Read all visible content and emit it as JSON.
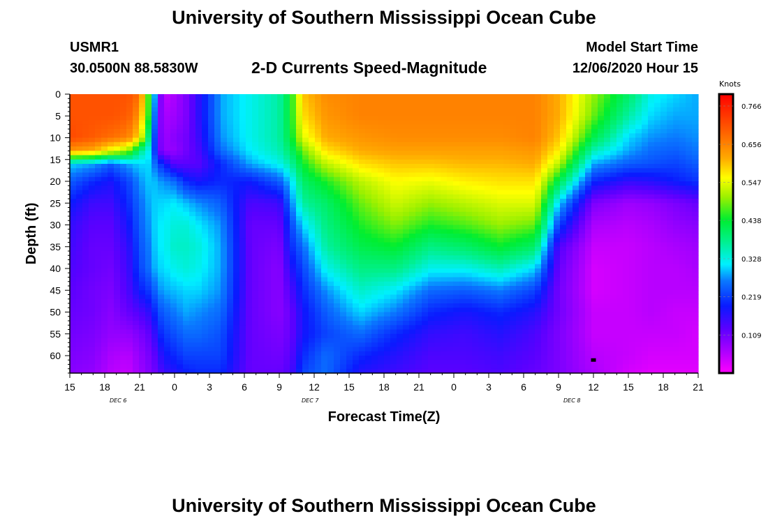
{
  "title_top": "University of Southern Mississippi Ocean Cube",
  "title_bottom": "University of Southern Mississippi Ocean Cube",
  "header": {
    "station": "USMR1",
    "coords": "30.0500N 88.5830W",
    "subtitle": "2-D Currents Speed-Magnitude",
    "model_start_label": "Model Start Time",
    "model_start_value": "12/06/2020 Hour 15"
  },
  "chart_data": {
    "type": "heatmap",
    "title": "2-D Currents Speed-Magnitude",
    "xlabel": "Forecast Time(Z)",
    "ylabel": "Depth (ft)",
    "x_tick_labels": [
      "15",
      "18",
      "21",
      "0",
      "3",
      "6",
      "9",
      "12",
      "15",
      "18",
      "21",
      "0",
      "3",
      "6",
      "9",
      "12",
      "15",
      "18",
      "21"
    ],
    "y_tick_labels": [
      "0",
      "5",
      "10",
      "15",
      "20",
      "25",
      "30",
      "35",
      "40",
      "45",
      "50",
      "55",
      "60"
    ],
    "x_range_hours": [
      0,
      54
    ],
    "y_range_ft": [
      0,
      64
    ],
    "date_labels": [
      {
        "text": "DEC  6",
        "hour": 4.5
      },
      {
        "text": "DEC  7",
        "hour": 21
      },
      {
        "text": "DEC  8",
        "hour": 43.5
      }
    ],
    "colorbar": {
      "unit": "Knots",
      "ticks": [
        "0.766",
        "0.656",
        "0.547",
        "0.438",
        "0.328",
        "0.219",
        "0.109"
      ],
      "tick_values": [
        0.766,
        0.656,
        0.547,
        0.438,
        0.328,
        0.219,
        0.109
      ],
      "range": [
        0.0,
        0.8
      ]
    },
    "marker": {
      "hour": 45,
      "depth_ft": 61
    },
    "grid_hours": [
      0,
      2,
      3.5,
      5,
      6,
      7,
      7.5,
      8,
      9,
      10,
      11,
      13,
      15.5,
      18,
      19,
      20,
      22,
      25,
      28,
      31,
      34,
      37,
      40,
      42,
      45,
      48,
      50,
      52,
      54
    ],
    "grid_depths": [
      0,
      5,
      10,
      13,
      16,
      20,
      25,
      30,
      35,
      40,
      45,
      50,
      55,
      60,
      64
    ],
    "profiles": [
      [
        0.71,
        0.71,
        0.72,
        0.64,
        0.3,
        0.24,
        0.19,
        0.16,
        0.15,
        0.14,
        0.13,
        0.12,
        0.11,
        0.1,
        0.09
      ],
      [
        0.71,
        0.71,
        0.7,
        0.62,
        0.28,
        0.2,
        0.15,
        0.13,
        0.12,
        0.12,
        0.11,
        0.11,
        0.1,
        0.09,
        0.08
      ],
      [
        0.71,
        0.71,
        0.68,
        0.55,
        0.24,
        0.18,
        0.15,
        0.13,
        0.12,
        0.11,
        0.1,
        0.09,
        0.08,
        0.06,
        0.05
      ],
      [
        0.71,
        0.7,
        0.66,
        0.5,
        0.28,
        0.22,
        0.2,
        0.18,
        0.16,
        0.15,
        0.14,
        0.12,
        0.08,
        0.05,
        0.04
      ],
      [
        0.68,
        0.64,
        0.58,
        0.38,
        0.3,
        0.27,
        0.25,
        0.24,
        0.23,
        0.22,
        0.19,
        0.14,
        0.1,
        0.08,
        0.07
      ],
      [
        0.4,
        0.4,
        0.32,
        0.3,
        0.3,
        0.3,
        0.29,
        0.28,
        0.27,
        0.26,
        0.22,
        0.17,
        0.13,
        0.11,
        0.1
      ],
      [
        0.2,
        0.15,
        0.15,
        0.15,
        0.22,
        0.28,
        0.3,
        0.31,
        0.31,
        0.3,
        0.26,
        0.22,
        0.18,
        0.14,
        0.12
      ],
      [
        0.04,
        0.06,
        0.07,
        0.08,
        0.2,
        0.27,
        0.3,
        0.31,
        0.31,
        0.3,
        0.28,
        0.24,
        0.21,
        0.18,
        0.15
      ],
      [
        0.06,
        0.07,
        0.09,
        0.08,
        0.13,
        0.25,
        0.31,
        0.33,
        0.34,
        0.32,
        0.29,
        0.26,
        0.23,
        0.2,
        0.17
      ],
      [
        0.1,
        0.1,
        0.11,
        0.11,
        0.13,
        0.2,
        0.29,
        0.33,
        0.34,
        0.33,
        0.3,
        0.28,
        0.25,
        0.22,
        0.19
      ],
      [
        0.16,
        0.16,
        0.15,
        0.14,
        0.13,
        0.18,
        0.27,
        0.31,
        0.33,
        0.32,
        0.3,
        0.27,
        0.25,
        0.22,
        0.2
      ],
      [
        0.28,
        0.28,
        0.27,
        0.25,
        0.2,
        0.2,
        0.24,
        0.27,
        0.28,
        0.28,
        0.27,
        0.25,
        0.23,
        0.22,
        0.2
      ],
      [
        0.32,
        0.32,
        0.32,
        0.31,
        0.28,
        0.19,
        0.14,
        0.12,
        0.12,
        0.12,
        0.12,
        0.12,
        0.12,
        0.12,
        0.12
      ],
      [
        0.36,
        0.36,
        0.36,
        0.35,
        0.32,
        0.24,
        0.15,
        0.12,
        0.1,
        0.09,
        0.09,
        0.09,
        0.1,
        0.11,
        0.12
      ],
      [
        0.44,
        0.44,
        0.43,
        0.4,
        0.36,
        0.3,
        0.26,
        0.22,
        0.2,
        0.17,
        0.14,
        0.12,
        0.12,
        0.13,
        0.14
      ],
      [
        0.6,
        0.58,
        0.54,
        0.48,
        0.44,
        0.4,
        0.36,
        0.3,
        0.25,
        0.22,
        0.2,
        0.18,
        0.18,
        0.2,
        0.22
      ],
      [
        0.65,
        0.64,
        0.62,
        0.58,
        0.52,
        0.45,
        0.4,
        0.38,
        0.36,
        0.32,
        0.27,
        0.24,
        0.22,
        0.25,
        0.25
      ],
      [
        0.66,
        0.66,
        0.64,
        0.62,
        0.58,
        0.52,
        0.48,
        0.45,
        0.42,
        0.38,
        0.34,
        0.3,
        0.25,
        0.2,
        0.17
      ],
      [
        0.66,
        0.66,
        0.65,
        0.63,
        0.6,
        0.56,
        0.53,
        0.49,
        0.44,
        0.38,
        0.31,
        0.26,
        0.2,
        0.17,
        0.15
      ],
      [
        0.66,
        0.66,
        0.65,
        0.63,
        0.6,
        0.55,
        0.5,
        0.45,
        0.38,
        0.32,
        0.25,
        0.2,
        0.16,
        0.14,
        0.13
      ],
      [
        0.66,
        0.66,
        0.65,
        0.63,
        0.61,
        0.57,
        0.52,
        0.47,
        0.4,
        0.32,
        0.24,
        0.18,
        0.15,
        0.14,
        0.13
      ],
      [
        0.66,
        0.66,
        0.65,
        0.63,
        0.61,
        0.58,
        0.54,
        0.5,
        0.44,
        0.35,
        0.26,
        0.2,
        0.17,
        0.15,
        0.14
      ],
      [
        0.66,
        0.66,
        0.66,
        0.64,
        0.62,
        0.58,
        0.54,
        0.48,
        0.4,
        0.3,
        0.22,
        0.17,
        0.14,
        0.13,
        0.12
      ],
      [
        0.62,
        0.62,
        0.6,
        0.57,
        0.52,
        0.42,
        0.3,
        0.22,
        0.14,
        0.12,
        0.11,
        0.11,
        0.1,
        0.1,
        0.1
      ],
      [
        0.5,
        0.48,
        0.42,
        0.35,
        0.28,
        0.2,
        0.1,
        0.06,
        0.04,
        0.03,
        0.03,
        0.04,
        0.04,
        0.05,
        0.06
      ],
      [
        0.4,
        0.36,
        0.3,
        0.28,
        0.24,
        0.16,
        0.07,
        0.05,
        0.04,
        0.04,
        0.04,
        0.04,
        0.04,
        0.04,
        0.03
      ],
      [
        0.32,
        0.3,
        0.27,
        0.25,
        0.23,
        0.17,
        0.08,
        0.06,
        0.05,
        0.05,
        0.05,
        0.05,
        0.04,
        0.03,
        0.02
      ],
      [
        0.3,
        0.28,
        0.26,
        0.24,
        0.22,
        0.19,
        0.1,
        0.08,
        0.06,
        0.05,
        0.05,
        0.04,
        0.04,
        0.03,
        0.02
      ],
      [
        0.28,
        0.28,
        0.27,
        0.26,
        0.24,
        0.21,
        0.12,
        0.09,
        0.07,
        0.06,
        0.05,
        0.04,
        0.03,
        0.03,
        0.02
      ]
    ]
  }
}
